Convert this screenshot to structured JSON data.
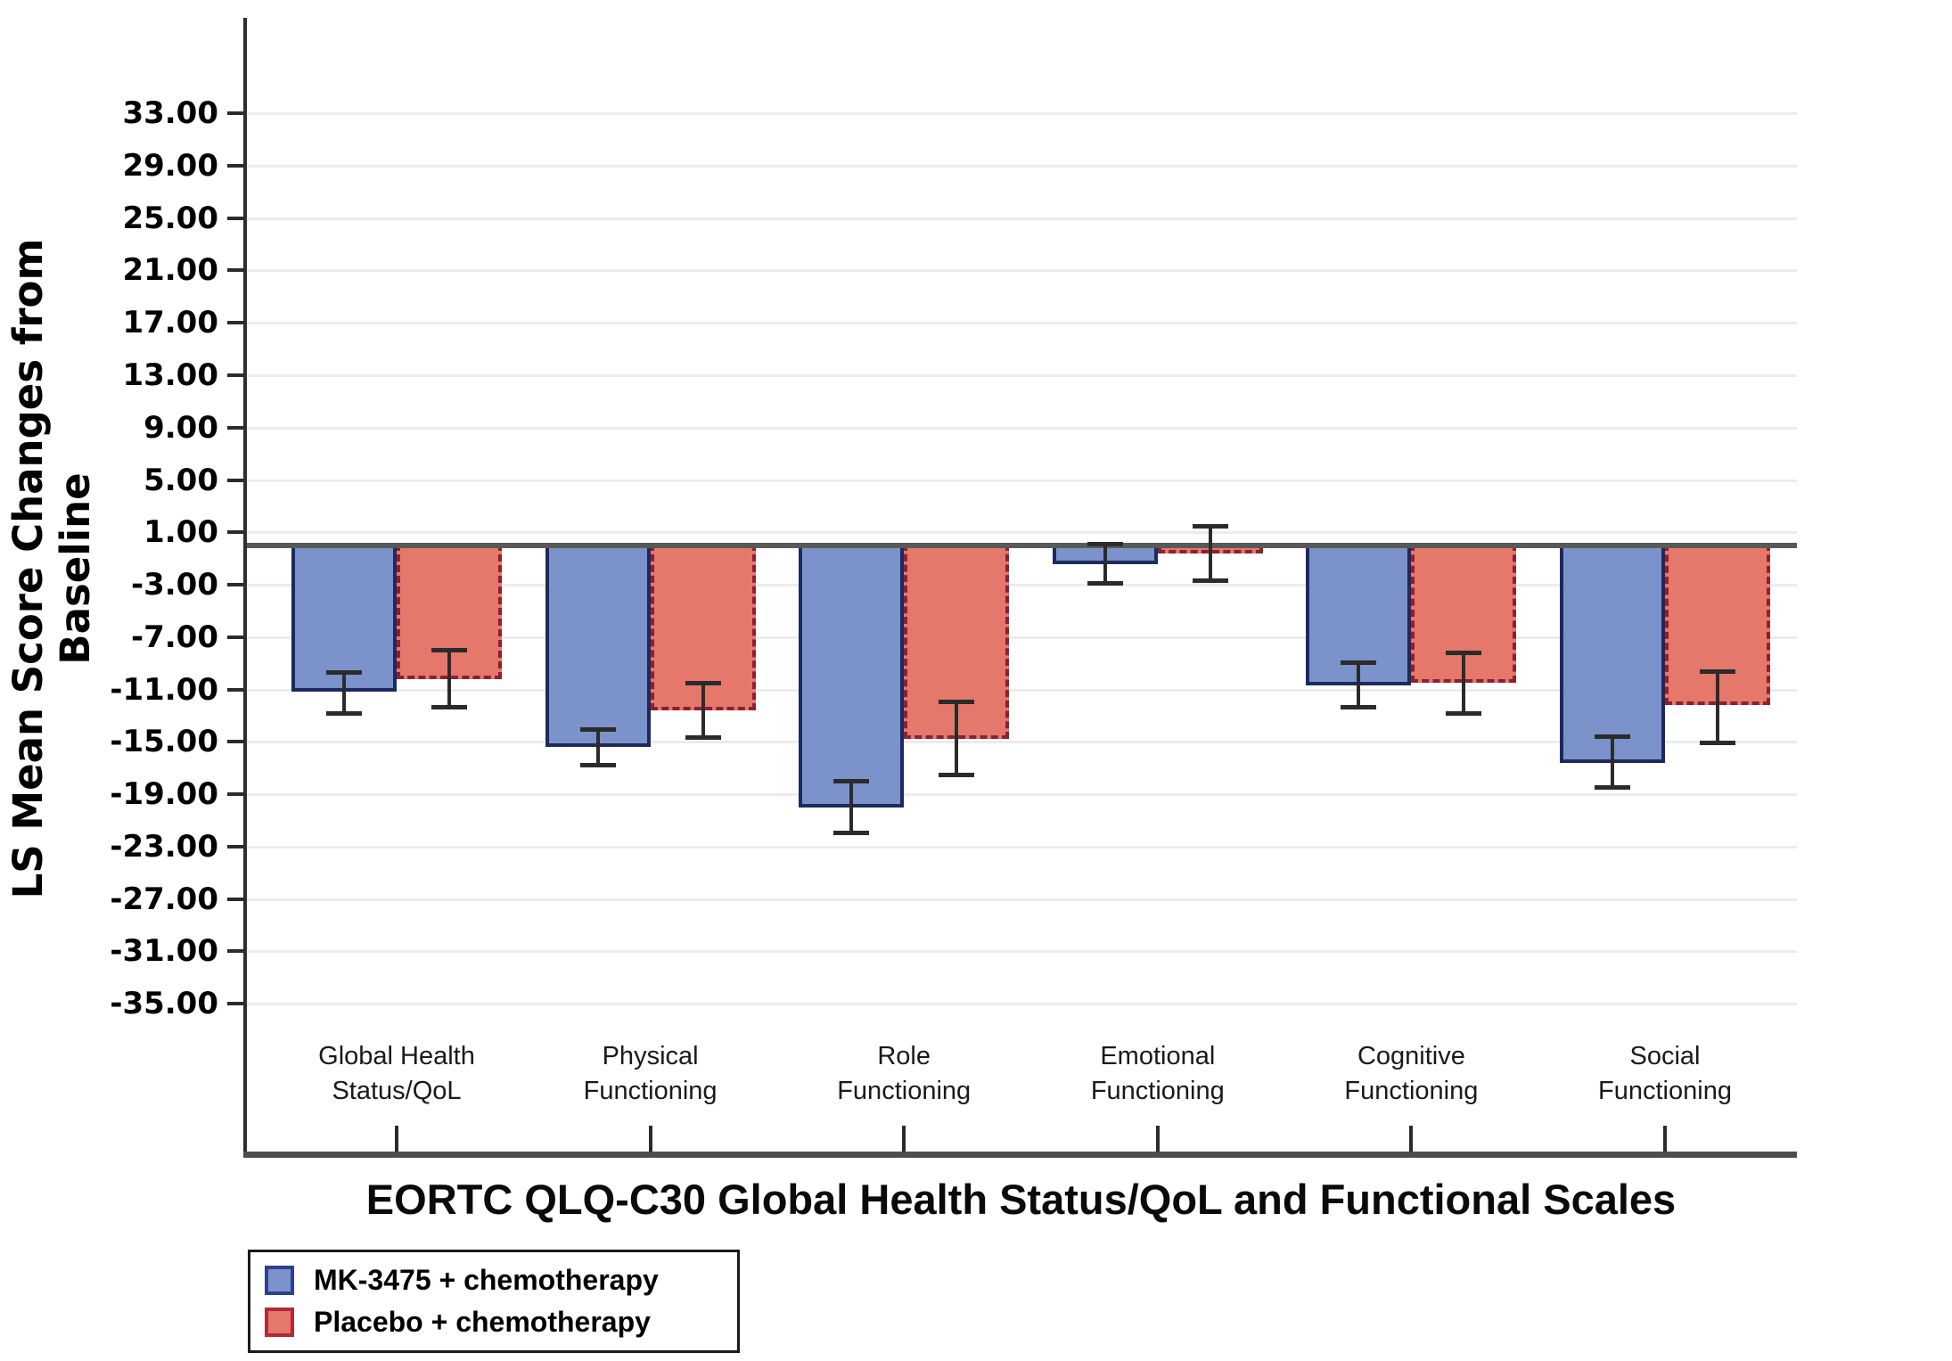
{
  "chart_data": {
    "type": "bar",
    "title": "",
    "xlabel": "EORTC QLQ-C30 Global Health Status/QoL and Functional Scales",
    "ylabel": "LS Mean Score Changes from Baseline",
    "categories": [
      [
        "Global Health",
        "Status/QoL"
      ],
      [
        "Physical",
        "Functioning"
      ],
      [
        "Role",
        "Functioning"
      ],
      [
        "Emotional",
        "Functioning"
      ],
      [
        "Cognitive",
        "Functioning"
      ],
      [
        "Social",
        "Functioning"
      ]
    ],
    "y_ticks": [
      33,
      29,
      25,
      21,
      17,
      13,
      9,
      5,
      1,
      -3,
      -7,
      -11,
      -15,
      -19,
      -23,
      -27,
      -31,
      -35
    ],
    "y_tick_labels": [
      "33.00",
      "29.00",
      "25.00",
      "21.00",
      "17.00",
      "13.00",
      "9.00",
      "5.00",
      "1.00",
      "-3.00",
      "-7.00",
      "-11.00",
      "-15.00",
      "-19.00",
      "-23.00",
      "-27.00",
      "-31.00",
      "-35.00"
    ],
    "ylim": [
      -46.5,
      40.3
    ],
    "baseline_value": 0,
    "grid": true,
    "legend_position": "bottom-left",
    "error_bar_color": "#2b2b2b",
    "series": [
      {
        "name": "MK-3475 + chemotherapy",
        "color": "#7b92cb",
        "border_color": "#1c2a5e",
        "border_style": "solid",
        "values": [
          -11.2,
          -15.4,
          -20.0,
          -1.4,
          -10.7,
          -16.6
        ],
        "ci_upper": [
          -9.7,
          -14.0,
          -18.0,
          0.1,
          -8.9,
          -14.6
        ],
        "ci_lower": [
          -12.9,
          -16.8,
          -22.0,
          -2.9,
          -12.4,
          -18.5
        ]
      },
      {
        "name": "Placebo + chemotherapy",
        "color": "#e5786b",
        "border_color": "#8a2130",
        "border_style": "dashed",
        "values": [
          -10.2,
          -12.6,
          -14.8,
          -0.6,
          -10.5,
          -12.2
        ],
        "ci_upper": [
          -8.0,
          -10.5,
          -11.9,
          1.5,
          -8.2,
          -9.6
        ],
        "ci_lower": [
          -12.4,
          -14.7,
          -17.6,
          -2.7,
          -12.9,
          -15.1
        ]
      }
    ]
  }
}
